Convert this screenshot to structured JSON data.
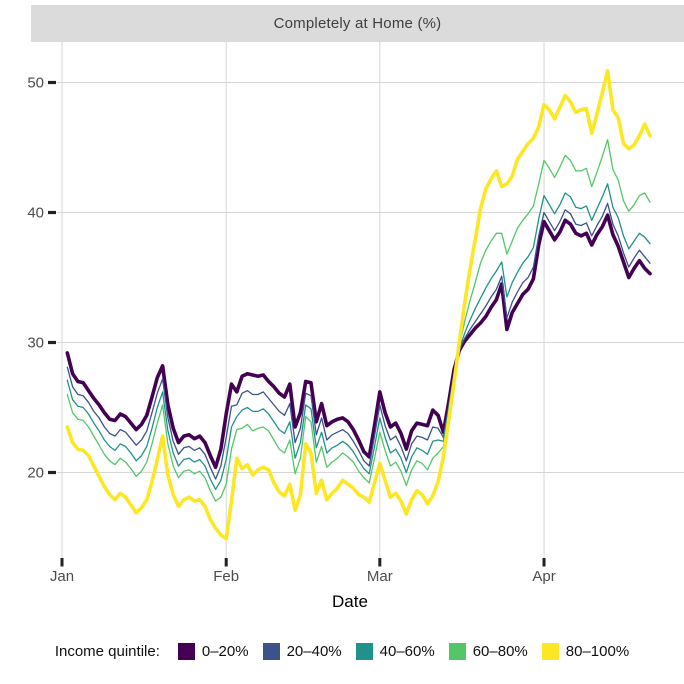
{
  "chart_data": {
    "type": "line",
    "title": "Completely at Home (%)",
    "xlabel": "Date",
    "ylabel": "",
    "x_unit": "day (daily observations)",
    "x_start": "Jan 2",
    "x_end": "Apr 21",
    "x_ticks": [
      {
        "label": "Jan",
        "day_index": -1
      },
      {
        "label": "Feb",
        "day_index": 30
      },
      {
        "label": "Mar",
        "day_index": 59
      },
      {
        "label": "Apr",
        "day_index": 90
      }
    ],
    "y_ticks": [
      20,
      30,
      40,
      50
    ],
    "ylim": [
      13.2,
      53.2
    ],
    "grid": "major-only",
    "legend_position": "bottom",
    "legend_title": "Income quintile:",
    "colors": {
      "strip_bg": "#dbdbdb",
      "gridline": "#d6d6d6",
      "tick": "#222222",
      "tick_label": "#4d4d4d"
    },
    "series": [
      {
        "name": "0–20%",
        "color": "#440154",
        "width": 3.6,
        "values": [
          29.2,
          27.6,
          27.0,
          26.9,
          26.3,
          25.7,
          25.2,
          24.6,
          24.1,
          24.0,
          24.5,
          24.3,
          23.8,
          23.3,
          23.7,
          24.4,
          25.8,
          27.3,
          28.2,
          25.2,
          23.4,
          22.3,
          22.8,
          22.9,
          22.6,
          22.8,
          22.3,
          21.3,
          20.4,
          21.8,
          24.5,
          26.8,
          26.2,
          27.4,
          27.6,
          27.5,
          27.4,
          27.5,
          27.0,
          26.6,
          26.1,
          25.8,
          26.8,
          23.5,
          24.6,
          27.0,
          26.9,
          23.9,
          25.3,
          23.6,
          23.9,
          24.1,
          24.2,
          23.9,
          23.3,
          22.5,
          21.6,
          21.2,
          23.6,
          26.2,
          24.6,
          23.5,
          23.8,
          23.0,
          21.8,
          23.2,
          23.8,
          23.7,
          23.6,
          24.8,
          24.4,
          23.1,
          25.4,
          27.9,
          29.4,
          30.1,
          30.6,
          31.1,
          31.5,
          32.0,
          32.7,
          33.3,
          34.5,
          31.0,
          32.3,
          33.0,
          33.7,
          34.1,
          34.9,
          37.5,
          39.3,
          38.6,
          37.9,
          38.5,
          39.4,
          39.1,
          38.4,
          38.2,
          38.4,
          37.5,
          38.3,
          38.9,
          39.8,
          38.3,
          37.4,
          36.2,
          35.0,
          35.7,
          36.3,
          35.7,
          35.3
        ]
      },
      {
        "name": "20–40%",
        "color": "#3b528b",
        "width": 1.3,
        "values": [
          28.1,
          26.6,
          26.0,
          25.9,
          25.4,
          24.7,
          24.2,
          23.5,
          23.0,
          22.8,
          23.3,
          23.1,
          22.6,
          22.1,
          22.5,
          23.2,
          24.6,
          26.1,
          27.2,
          24.2,
          22.4,
          21.4,
          21.9,
          22.0,
          21.7,
          21.9,
          21.4,
          20.4,
          19.5,
          20.5,
          22.7,
          25.1,
          25.2,
          26.1,
          26.3,
          26.0,
          26.0,
          26.2,
          25.7,
          25.2,
          24.7,
          24.4,
          25.3,
          22.3,
          23.4,
          26.1,
          25.9,
          22.9,
          24.2,
          22.5,
          22.9,
          23.1,
          23.3,
          23.0,
          22.4,
          21.7,
          20.9,
          20.5,
          22.8,
          25.2,
          23.6,
          22.5,
          22.8,
          22.0,
          20.9,
          22.2,
          22.8,
          22.7,
          22.5,
          23.5,
          23.4,
          22.7,
          25.1,
          27.7,
          29.4,
          30.3,
          31.0,
          31.6,
          32.2,
          32.8,
          33.5,
          34.1,
          35.1,
          31.9,
          33.1,
          33.9,
          34.6,
          35.0,
          35.8,
          38.2,
          40.0,
          39.3,
          38.6,
          39.3,
          40.2,
          39.9,
          39.1,
          39.0,
          39.2,
          38.2,
          39.0,
          39.7,
          40.7,
          39.1,
          38.2,
          36.9,
          35.8,
          36.5,
          37.1,
          36.6,
          36.1
        ]
      },
      {
        "name": "40–60%",
        "color": "#21918c",
        "width": 1.3,
        "values": [
          27.1,
          25.6,
          25.1,
          25.0,
          24.5,
          23.8,
          23.2,
          22.5,
          22.0,
          21.7,
          22.2,
          22.0,
          21.5,
          20.9,
          21.3,
          22.0,
          23.4,
          25.0,
          26.2,
          23.2,
          21.5,
          20.5,
          21.0,
          21.1,
          20.8,
          21.0,
          20.5,
          19.5,
          18.7,
          19.4,
          21.0,
          23.5,
          24.3,
          24.8,
          25.0,
          24.7,
          24.7,
          24.9,
          24.5,
          23.9,
          23.3,
          23.0,
          23.9,
          21.1,
          22.3,
          25.2,
          24.9,
          21.9,
          23.1,
          21.5,
          21.9,
          22.1,
          22.4,
          22.1,
          21.6,
          20.9,
          20.3,
          19.9,
          22.0,
          24.2,
          22.7,
          21.5,
          21.8,
          21.1,
          20.0,
          21.2,
          21.9,
          21.7,
          21.4,
          22.4,
          22.5,
          22.4,
          24.9,
          27.5,
          29.5,
          30.7,
          31.7,
          32.6,
          33.4,
          34.2,
          34.9,
          35.5,
          36.2,
          33.5,
          34.6,
          35.4,
          36.1,
          36.6,
          37.3,
          39.5,
          41.3,
          40.6,
          39.9,
          40.6,
          41.5,
          41.2,
          40.4,
          40.3,
          40.5,
          39.4,
          40.3,
          41.2,
          42.2,
          40.4,
          39.6,
          38.2,
          37.2,
          37.8,
          38.4,
          38.1,
          37.6
        ]
      },
      {
        "name": "60–80%",
        "color": "#55c667",
        "width": 1.3,
        "values": [
          26.0,
          24.6,
          24.1,
          24.0,
          23.5,
          22.8,
          22.1,
          21.4,
          20.9,
          20.6,
          21.1,
          20.8,
          20.3,
          19.7,
          20.1,
          20.8,
          22.2,
          23.8,
          25.2,
          22.2,
          20.5,
          19.6,
          20.1,
          20.2,
          19.9,
          20.1,
          19.6,
          18.6,
          17.8,
          18.1,
          19.1,
          21.8,
          23.3,
          23.4,
          23.7,
          23.2,
          23.4,
          23.5,
          23.2,
          22.5,
          21.8,
          21.5,
          22.5,
          19.9,
          21.1,
          24.3,
          23.9,
          20.8,
          22.0,
          20.4,
          20.8,
          21.1,
          21.5,
          21.2,
          20.8,
          20.1,
          19.6,
          19.2,
          21.1,
          23.1,
          21.7,
          20.5,
          20.8,
          20.1,
          19.0,
          20.2,
          20.9,
          20.7,
          20.2,
          21.1,
          21.5,
          22.0,
          24.6,
          27.3,
          29.7,
          31.6,
          33.2,
          34.6,
          36.1,
          37.1,
          37.8,
          38.4,
          38.4,
          36.8,
          37.8,
          38.8,
          39.4,
          39.9,
          40.5,
          42.2,
          44.0,
          43.4,
          42.7,
          43.5,
          44.4,
          44.0,
          43.2,
          43.2,
          43.4,
          42.0,
          43.1,
          44.3,
          45.6,
          43.3,
          42.5,
          40.9,
          40.1,
          40.6,
          41.3,
          41.5,
          40.8
        ]
      },
      {
        "name": "80–100%",
        "color": "#fde725",
        "width": 3.6,
        "values": [
          23.5,
          22.3,
          21.8,
          21.7,
          21.3,
          20.5,
          19.7,
          18.9,
          18.3,
          17.9,
          18.4,
          18.1,
          17.5,
          16.9,
          17.3,
          17.9,
          19.3,
          21.0,
          22.8,
          19.8,
          18.3,
          17.4,
          17.9,
          18.1,
          17.8,
          17.9,
          17.4,
          16.4,
          15.7,
          15.2,
          14.9,
          17.8,
          21.1,
          20.3,
          20.6,
          19.8,
          20.2,
          20.4,
          20.2,
          19.2,
          18.5,
          18.2,
          19.1,
          17.1,
          18.3,
          22.2,
          21.5,
          18.4,
          19.4,
          17.9,
          18.4,
          18.8,
          19.4,
          19.1,
          18.8,
          18.3,
          18.1,
          17.7,
          19.2,
          20.7,
          19.4,
          18.1,
          18.4,
          17.8,
          16.8,
          17.9,
          18.6,
          18.3,
          17.6,
          18.2,
          19.3,
          21.2,
          24.0,
          26.9,
          30.0,
          33.0,
          35.6,
          37.9,
          40.3,
          41.8,
          42.6,
          43.2,
          42.0,
          42.2,
          42.8,
          44.1,
          44.7,
          45.3,
          45.7,
          46.6,
          48.3,
          47.9,
          47.2,
          48.1,
          49.0,
          48.5,
          47.7,
          47.9,
          48.0,
          46.1,
          47.6,
          49.2,
          50.9,
          47.9,
          47.3,
          45.3,
          44.9,
          45.2,
          45.9,
          46.8,
          45.9
        ]
      }
    ]
  }
}
